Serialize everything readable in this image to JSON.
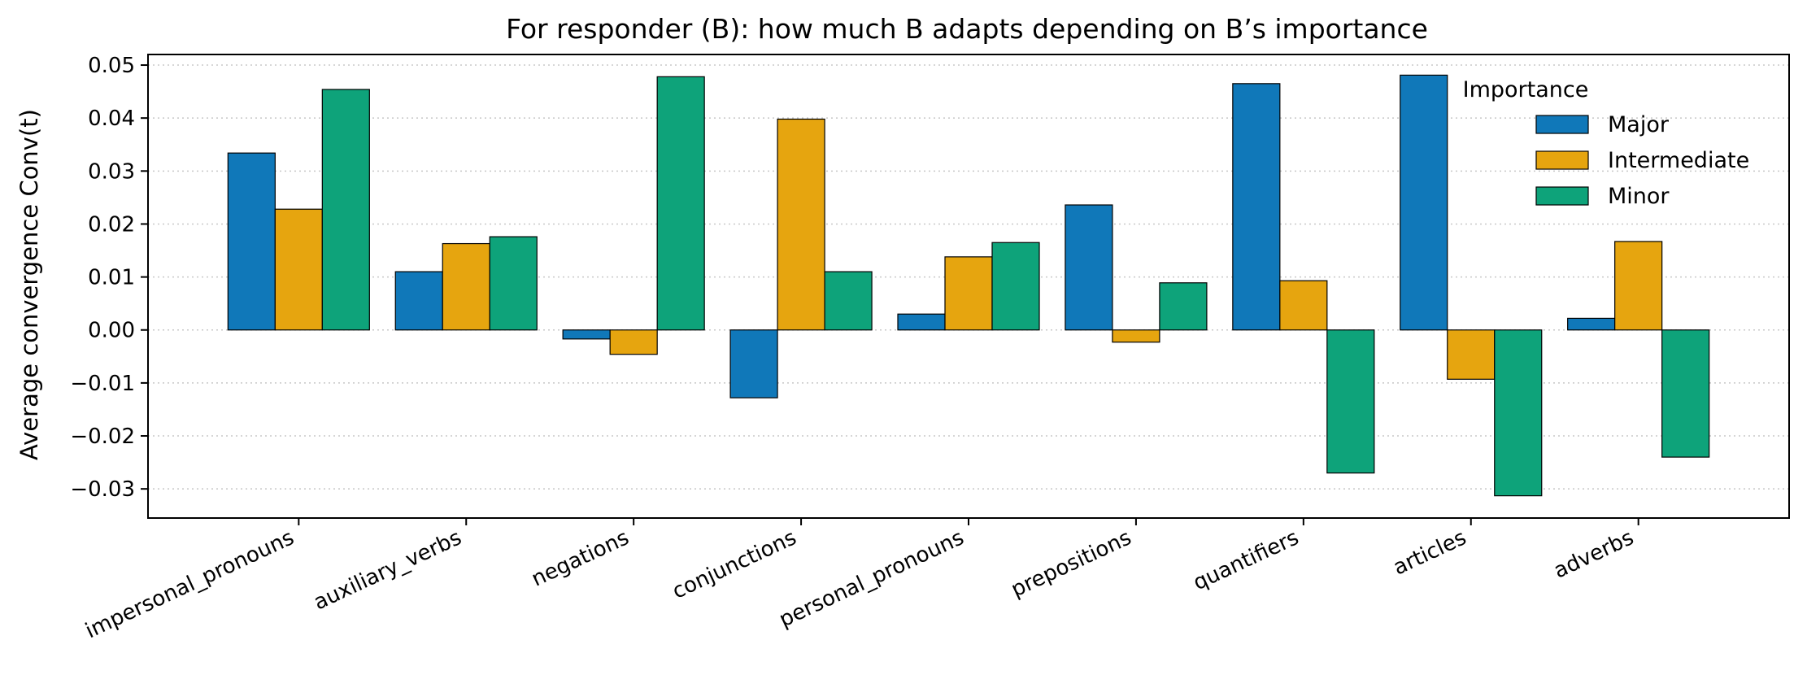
{
  "chart_data": {
    "type": "bar",
    "title": "For responder (B): how much B adapts depending on B’s importance",
    "xlabel": "",
    "ylabel": "Average convergence  Conv(t)",
    "categories": [
      "impersonal_pronouns",
      "auxiliary_verbs",
      "negations",
      "conjunctions",
      "personal_pronouns",
      "prepositions",
      "quantifiers",
      "articles",
      "adverbs"
    ],
    "series": [
      {
        "name": "Major",
        "color": "#1078b9",
        "values": [
          0.0334,
          0.011,
          -0.0017,
          -0.0128,
          0.003,
          0.0236,
          0.0465,
          0.0481,
          0.0022
        ]
      },
      {
        "name": "Intermediate",
        "color": "#e6a50f",
        "values": [
          0.0228,
          0.0163,
          -0.0046,
          0.0398,
          0.0138,
          -0.0023,
          0.0093,
          -0.0093,
          0.0167
        ]
      },
      {
        "name": "Minor",
        "color": "#0ea37a",
        "values": [
          0.0454,
          0.0176,
          0.0478,
          0.011,
          0.0165,
          0.0089,
          -0.027,
          -0.0313,
          -0.024
        ]
      }
    ],
    "ylim": [
      -0.0355,
      0.052
    ],
    "yticks": [
      -0.03,
      -0.02,
      -0.01,
      0.0,
      0.01,
      0.02,
      0.03,
      0.04,
      0.05
    ],
    "ytick_labels": [
      "−0.03",
      "−0.02",
      "−0.01",
      "0.00",
      "0.01",
      "0.02",
      "0.03",
      "0.04",
      "0.05"
    ],
    "grid": "y-dotted",
    "legend": {
      "title": "Importance",
      "position": "top-right"
    }
  }
}
